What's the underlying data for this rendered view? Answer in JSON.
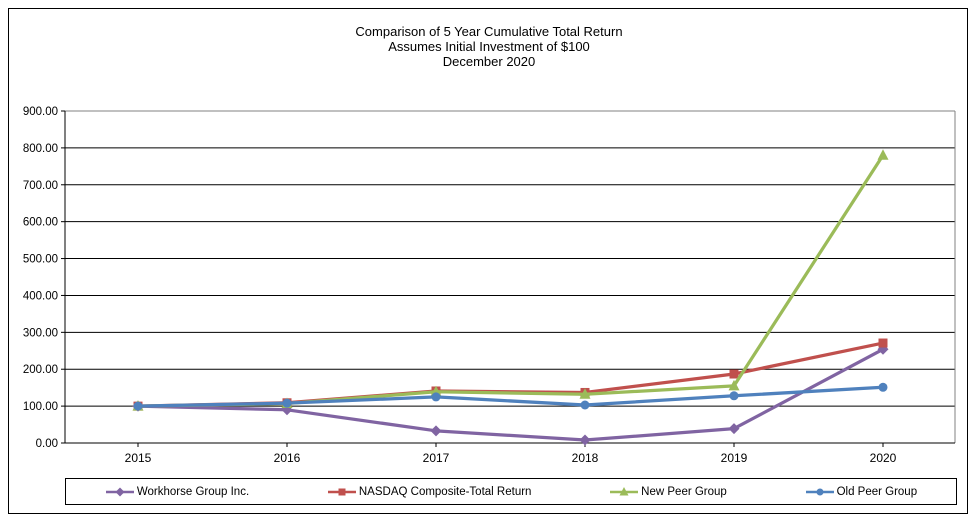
{
  "figure": {
    "title_lines": [
      "Comparison of 5 Year Cumulative Total Return",
      "Assumes Initial Investment of $100",
      "December 2020"
    ]
  },
  "chart_data": {
    "type": "line",
    "title": "Comparison of 5 Year Cumulative Total Return",
    "subtitle": "Assumes Initial Investment of $100",
    "date_label": "December 2020",
    "categories": [
      "2015",
      "2016",
      "2017",
      "2018",
      "2019",
      "2020"
    ],
    "series": [
      {
        "name": "Workhorse Group Inc.",
        "color": "#8064A2",
        "marker": "diamond",
        "values": [
          100,
          90,
          33,
          8,
          39,
          254
        ]
      },
      {
        "name": "NASDAQ Composite-Total Return",
        "color": "#C0504D",
        "marker": "square",
        "values": [
          100,
          109,
          141,
          137,
          187,
          271
        ]
      },
      {
        "name": "New Peer Group",
        "color": "#9BBB59",
        "marker": "triangle",
        "values": [
          100,
          107,
          139,
          132,
          155,
          780
        ]
      },
      {
        "name": "Old Peer Group",
        "color": "#4F81BD",
        "marker": "circle",
        "values": [
          100,
          108,
          125,
          103,
          128,
          151
        ]
      }
    ],
    "ylim": [
      0,
      900
    ],
    "y_tick_step": 100,
    "y_tick_decimals": 2,
    "grid": true,
    "legend_position": "bottom",
    "axis_color": "#000000",
    "plot_border_color": "#808080",
    "gridline_color": "#000000"
  }
}
